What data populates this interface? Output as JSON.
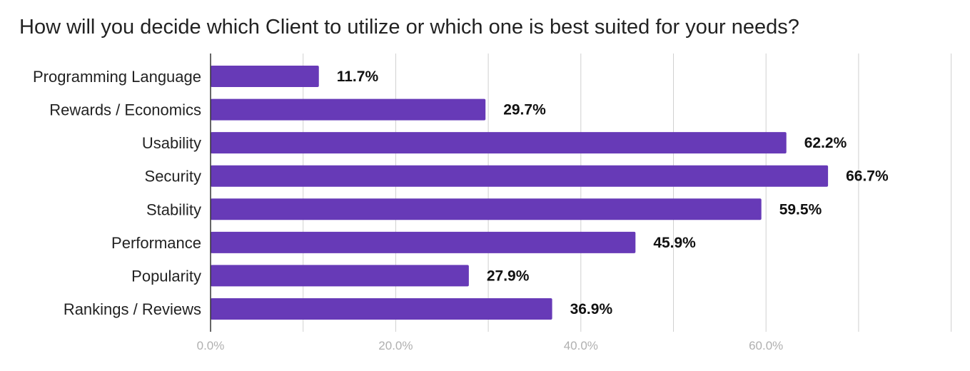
{
  "chart_data": {
    "type": "bar",
    "orientation": "horizontal",
    "title": "How will you decide which Client to utilize or which one is best suited for your needs?",
    "categories": [
      "Programming Language",
      "Rewards / Economics",
      "Usability",
      "Security",
      "Stability",
      "Performance",
      "Popularity",
      "Rankings / Reviews"
    ],
    "values": [
      11.7,
      29.7,
      62.2,
      66.7,
      59.5,
      45.9,
      27.9,
      36.9
    ],
    "value_labels": [
      "11.7%",
      "29.7%",
      "62.2%",
      "66.7%",
      "59.5%",
      "45.9%",
      "27.9%",
      "36.9%"
    ],
    "xlim": [
      0,
      80
    ],
    "major_ticks": [
      0,
      20,
      40,
      60
    ],
    "tick_labels": [
      "0.0%",
      "20.0%",
      "40.0%",
      "60.0%"
    ],
    "minor_gridlines": [
      10,
      30,
      50,
      70,
      80
    ],
    "grid": true,
    "legend": "none",
    "colors": {
      "bar": "#673ab7",
      "grid": "#d0d0d0",
      "axis": "#333333"
    }
  }
}
